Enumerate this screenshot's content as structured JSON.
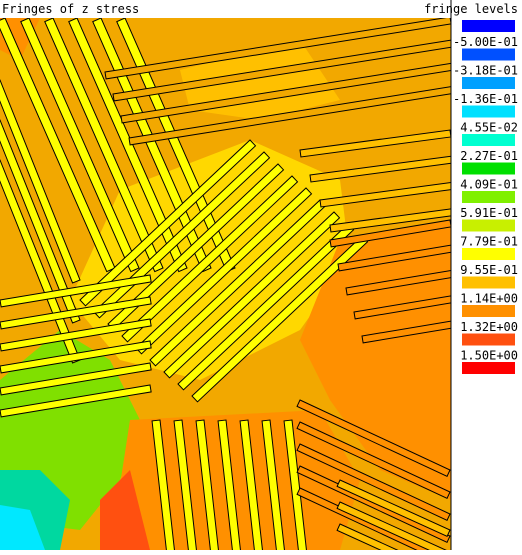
{
  "title": "Fringes of z stress",
  "legend": {
    "heading": "fringe levels",
    "labels": [
      "-5.00E-01",
      "-3.18E-01",
      "-1.36E-01",
      "4.55E-02",
      "2.27E-01",
      "4.09E-01",
      "5.91E-01",
      "7.79E-01",
      "9.55E-01",
      "1.14E+00",
      "1.32E+00",
      "1.50E+00"
    ],
    "colors": [
      "#0000ff",
      "#0050ff",
      "#00a0ff",
      "#00e0ff",
      "#00ffd0",
      "#00e000",
      "#80f000",
      "#c8f000",
      "#ffff00",
      "#ffc000",
      "#ff9000",
      "#ff5010",
      "#ff0000"
    ]
  }
}
